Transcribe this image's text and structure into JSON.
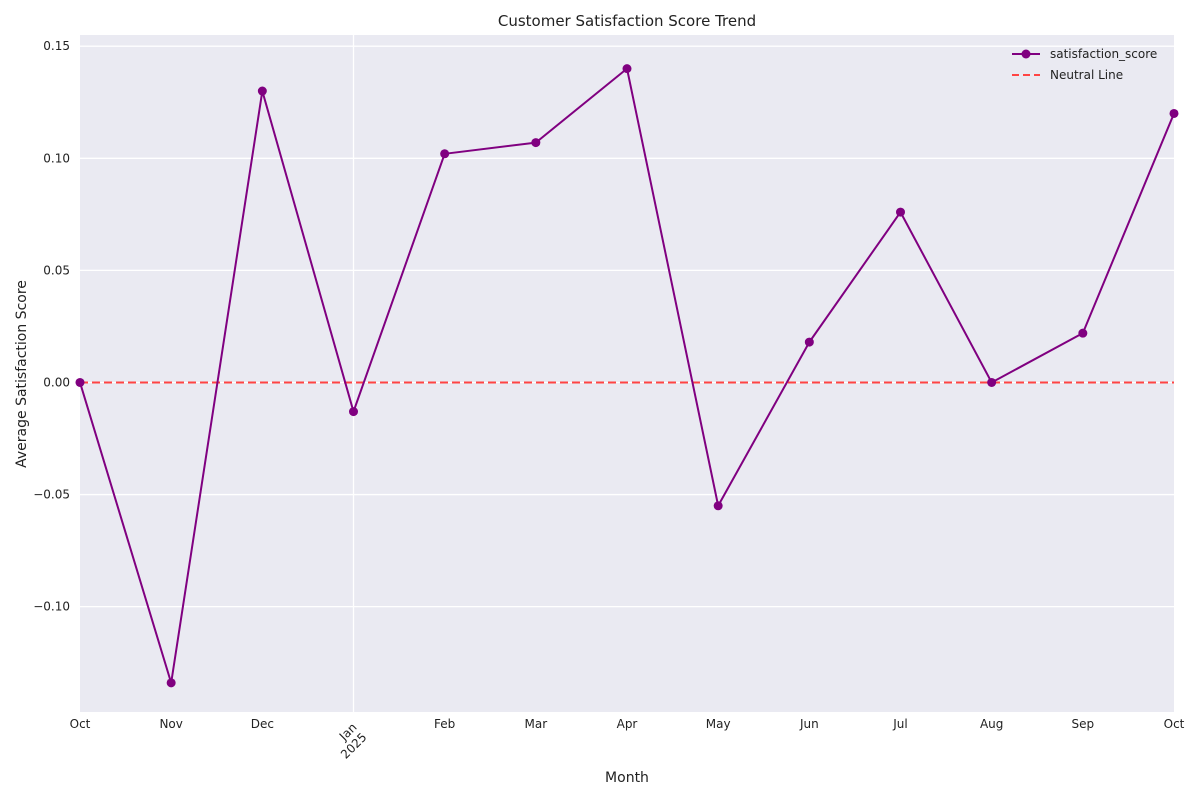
{
  "chart_data": {
    "type": "line",
    "title": "Customer Satisfaction Score Trend",
    "xlabel": "Month",
    "ylabel": "Average Satisfaction Score",
    "categories": [
      "Oct",
      "Nov",
      "Dec",
      "Jan\n2025",
      "Feb",
      "Mar",
      "Apr",
      "May",
      "Jun",
      "Jul",
      "Aug",
      "Sep",
      "Oct"
    ],
    "series": [
      {
        "name": "satisfaction_score",
        "values": [
          0.0,
          -0.134,
          0.13,
          -0.013,
          0.102,
          0.107,
          0.14,
          -0.055,
          0.018,
          0.076,
          0.0,
          0.022,
          0.12
        ]
      }
    ],
    "reference_lines": [
      {
        "name": "Neutral Line",
        "y": 0.0,
        "style": "dashed",
        "color": "#ff4444"
      }
    ],
    "ylim": [
      -0.147,
      0.155
    ],
    "yticks": [
      -0.1,
      -0.05,
      0.0,
      0.05,
      0.1,
      0.15
    ],
    "ytick_labels": [
      "−0.10",
      "−0.05",
      "0.00",
      "0.05",
      "0.10",
      "0.15"
    ],
    "grid": true,
    "legend_position": "top-right",
    "colors": {
      "line": "#800080",
      "neutral": "#ff4444",
      "plot_bg": "#eaeaf2",
      "grid": "#ffffff"
    }
  }
}
